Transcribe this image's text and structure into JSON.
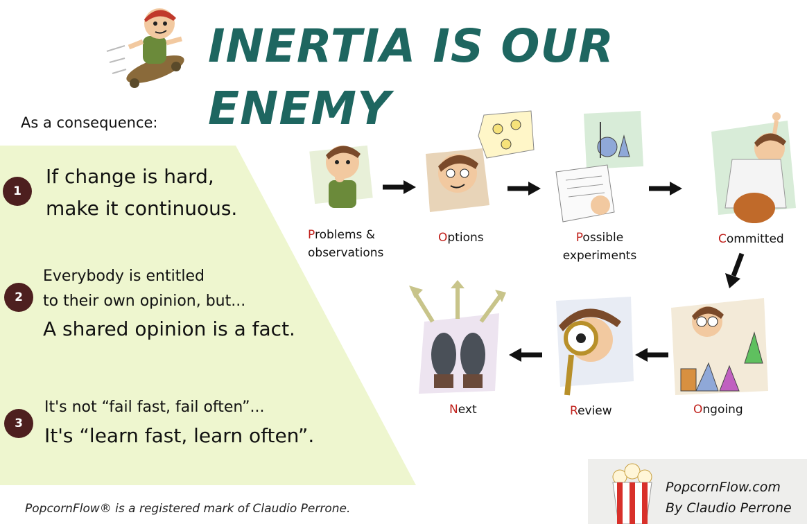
{
  "header": {
    "title": "INERTIA IS OUR ENEMY"
  },
  "intro": "As a consequence:",
  "points": [
    {
      "number": "1",
      "lines": [
        "If change is hard,",
        "make it continuous."
      ]
    },
    {
      "number": "2",
      "lines": [
        "Everybody is entitled",
        "to their own opinion, but...",
        "A shared opinion is a fact."
      ]
    },
    {
      "number": "3",
      "lines": [
        "It's not “fail fast, fail often”...",
        "It's “learn fast, learn often”."
      ]
    }
  ],
  "steps": [
    {
      "initial": "P",
      "rest_line1": "roblems &",
      "line2": "observations"
    },
    {
      "initial": "O",
      "rest_line1": "ptions",
      "line2": ""
    },
    {
      "initial": "P",
      "rest_line1": "ossible",
      "line2": "experiments"
    },
    {
      "initial": "C",
      "rest_line1": "ommitted",
      "line2": ""
    },
    {
      "initial": "O",
      "rest_line1": "ngoing",
      "line2": ""
    },
    {
      "initial": "R",
      "rest_line1": "eview",
      "line2": ""
    },
    {
      "initial": "N",
      "rest_line1": "ext",
      "line2": ""
    }
  ],
  "footnote": "PopcornFlow® is a registered mark of Claudio Perrone.",
  "brand": {
    "site": "PopcornFlow.com",
    "author": "By Claudio Perrone"
  },
  "colors": {
    "title": "#1e6660",
    "panel": "#eef6cf",
    "badge": "#4d1f1f",
    "initial": "#c0201b"
  }
}
